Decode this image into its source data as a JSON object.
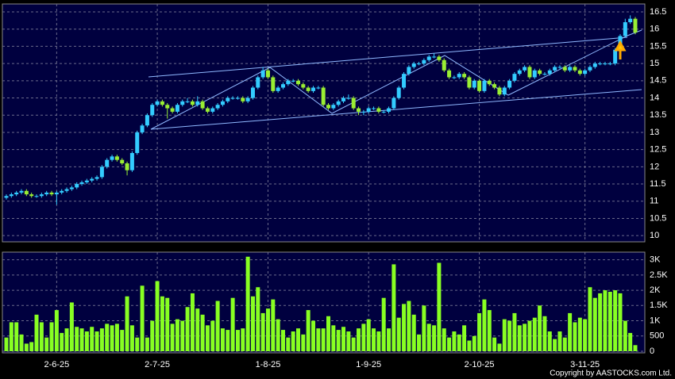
{
  "chart_data": {
    "type": "candlestick",
    "footer": "Copyright by AASTOCKS.com Ltd.",
    "categories": [
      null,
      null,
      null,
      null,
      null,
      null,
      null,
      null,
      null,
      null,
      "2-6-25",
      null,
      null,
      null,
      null,
      null,
      null,
      null,
      null,
      null,
      null,
      null,
      null,
      null,
      null,
      null,
      null,
      null,
      null,
      null,
      "2-7-25",
      null,
      null,
      null,
      null,
      null,
      null,
      null,
      null,
      null,
      null,
      null,
      null,
      null,
      null,
      null,
      null,
      null,
      null,
      null,
      null,
      null,
      "1-8-25",
      null,
      null,
      null,
      null,
      null,
      null,
      null,
      null,
      null,
      null,
      null,
      null,
      null,
      null,
      null,
      null,
      null,
      null,
      null,
      "1-9-25",
      null,
      null,
      null,
      null,
      null,
      null,
      null,
      null,
      null,
      null,
      null,
      null,
      null,
      null,
      null,
      null,
      null,
      null,
      null,
      null,
      null,
      "2-10-25",
      null,
      null,
      null,
      null,
      null,
      null,
      null,
      null,
      null,
      null,
      null,
      null,
      null,
      null,
      null,
      null,
      null,
      null,
      null,
      null,
      "3-11-25",
      null,
      null,
      null,
      null,
      null,
      null,
      null,
      null,
      null,
      null
    ],
    "open": [
      11.1,
      11.15,
      11.2,
      11.25,
      11.3,
      11.2,
      11.15,
      11.15,
      11.2,
      11.25,
      11.2,
      11.25,
      11.3,
      11.35,
      11.4,
      11.5,
      11.55,
      11.6,
      11.65,
      11.7,
      12.0,
      12.2,
      12.3,
      12.2,
      12.1,
      11.9,
      12.4,
      13.0,
      13.2,
      13.5,
      13.8,
      13.9,
      13.8,
      13.7,
      13.6,
      13.8,
      13.9,
      13.9,
      13.8,
      13.9,
      13.7,
      13.6,
      13.7,
      13.8,
      13.9,
      14.0,
      14.0,
      14.0,
      13.9,
      14.0,
      14.3,
      14.6,
      14.8,
      14.6,
      14.2,
      14.3,
      14.4,
      14.5,
      14.5,
      14.4,
      14.3,
      14.2,
      14.3,
      14.3,
      13.8,
      13.7,
      13.8,
      13.9,
      14.0,
      14.0,
      13.7,
      13.6,
      13.6,
      13.7,
      13.7,
      13.6,
      13.6,
      13.7,
      14.0,
      14.3,
      14.7,
      14.9,
      15.0,
      15.0,
      15.1,
      15.2,
      15.2,
      15.1,
      14.8,
      14.6,
      14.6,
      14.7,
      14.6,
      14.3,
      14.5,
      14.2,
      14.5,
      14.4,
      14.3,
      14.1,
      14.3,
      14.5,
      14.7,
      14.8,
      14.9,
      14.6,
      14.8,
      14.7,
      14.7,
      14.8,
      14.9,
      14.9,
      14.8,
      14.9,
      14.8,
      14.7,
      14.8,
      14.9,
      15.0,
      15.0,
      15.0,
      15.0,
      15.4,
      15.8,
      16.2,
      16.3
    ],
    "high": [
      11.2,
      11.25,
      11.3,
      11.35,
      11.35,
      11.25,
      11.2,
      11.25,
      11.3,
      11.3,
      11.3,
      11.35,
      11.4,
      11.45,
      11.55,
      11.6,
      11.65,
      11.7,
      11.75,
      12.05,
      12.25,
      12.35,
      12.35,
      12.25,
      12.15,
      12.45,
      13.05,
      13.25,
      13.55,
      13.85,
      13.95,
      13.95,
      13.85,
      13.75,
      13.85,
      13.95,
      14.0,
      13.95,
      14.05,
      13.95,
      13.75,
      13.75,
      13.85,
      13.95,
      14.05,
      14.05,
      14.05,
      14.05,
      14.05,
      14.35,
      14.65,
      14.9,
      14.85,
      14.65,
      14.35,
      14.45,
      14.55,
      14.55,
      14.55,
      14.45,
      14.35,
      14.35,
      14.35,
      14.35,
      13.85,
      13.85,
      13.95,
      14.05,
      14.1,
      14.05,
      13.75,
      13.65,
      13.75,
      13.75,
      13.75,
      13.65,
      13.75,
      14.05,
      14.35,
      14.75,
      14.95,
      15.05,
      15.05,
      15.15,
      15.25,
      15.3,
      15.25,
      15.15,
      14.85,
      14.65,
      14.75,
      14.75,
      14.65,
      14.55,
      14.55,
      14.55,
      14.55,
      14.45,
      14.35,
      14.35,
      14.55,
      14.75,
      14.85,
      14.95,
      14.95,
      14.85,
      14.85,
      14.75,
      14.85,
      14.95,
      14.95,
      14.95,
      14.95,
      14.95,
      14.85,
      14.85,
      14.95,
      15.05,
      15.05,
      15.05,
      15.05,
      15.45,
      15.85,
      16.3,
      16.4,
      16.35
    ],
    "low": [
      11.05,
      11.1,
      11.15,
      11.2,
      11.15,
      11.1,
      11.1,
      11.1,
      11.15,
      11.15,
      10.9,
      11.2,
      11.25,
      11.3,
      11.35,
      11.45,
      11.5,
      11.55,
      11.6,
      11.65,
      11.95,
      12.15,
      12.15,
      12.05,
      11.75,
      11.85,
      12.35,
      12.95,
      13.15,
      13.45,
      13.75,
      13.75,
      13.4,
      13.55,
      13.55,
      13.75,
      13.85,
      13.75,
      13.75,
      13.65,
      13.55,
      13.55,
      13.65,
      13.75,
      13.85,
      13.95,
      13.95,
      13.85,
      13.85,
      13.95,
      14.25,
      14.55,
      14.55,
      14.15,
      14.15,
      14.25,
      14.35,
      14.45,
      14.35,
      14.25,
      14.15,
      14.15,
      14.25,
      13.75,
      13.65,
      13.65,
      13.75,
      13.85,
      13.95,
      13.65,
      13.5,
      13.5,
      13.55,
      13.65,
      13.55,
      13.55,
      13.55,
      13.65,
      13.95,
      14.25,
      14.65,
      14.85,
      14.95,
      14.95,
      15.05,
      15.15,
      15.05,
      14.75,
      14.55,
      14.55,
      14.55,
      14.55,
      14.25,
      14.25,
      14.15,
      14.15,
      14.35,
      14.25,
      14.05,
      14.05,
      14.25,
      14.45,
      14.65,
      14.75,
      14.55,
      14.55,
      14.65,
      14.65,
      14.65,
      14.75,
      14.85,
      14.75,
      14.75,
      14.75,
      14.65,
      14.65,
      14.75,
      14.85,
      14.95,
      14.95,
      14.95,
      14.95,
      15.35,
      15.75,
      16.15,
      15.85
    ],
    "close": [
      11.15,
      11.2,
      11.25,
      11.3,
      11.2,
      11.15,
      11.15,
      11.2,
      11.25,
      11.2,
      11.25,
      11.3,
      11.35,
      11.4,
      11.5,
      11.55,
      11.6,
      11.65,
      11.7,
      12.0,
      12.2,
      12.3,
      12.2,
      12.1,
      11.9,
      12.4,
      13.0,
      13.2,
      13.5,
      13.8,
      13.9,
      13.8,
      13.7,
      13.6,
      13.8,
      13.9,
      13.9,
      13.8,
      13.9,
      13.7,
      13.6,
      13.7,
      13.8,
      13.9,
      14.0,
      14.0,
      14.0,
      13.9,
      14.0,
      14.3,
      14.6,
      14.8,
      14.6,
      14.2,
      14.3,
      14.4,
      14.5,
      14.5,
      14.4,
      14.3,
      14.2,
      14.3,
      14.3,
      13.8,
      13.7,
      13.8,
      13.9,
      14.0,
      14.0,
      13.7,
      13.6,
      13.6,
      13.7,
      13.7,
      13.6,
      13.6,
      13.7,
      14.0,
      14.3,
      14.7,
      14.9,
      15.0,
      15.0,
      15.1,
      15.2,
      15.2,
      15.1,
      14.8,
      14.6,
      14.6,
      14.7,
      14.6,
      14.3,
      14.5,
      14.2,
      14.5,
      14.4,
      14.3,
      14.1,
      14.3,
      14.5,
      14.7,
      14.8,
      14.9,
      14.6,
      14.8,
      14.7,
      14.7,
      14.8,
      14.9,
      14.9,
      14.8,
      14.9,
      14.8,
      14.7,
      14.8,
      14.9,
      15.0,
      15.0,
      15.0,
      15.0,
      15.4,
      15.8,
      16.2,
      16.3,
      15.9
    ],
    "volume": [
      450,
      950,
      950,
      550,
      250,
      300,
      1200,
      950,
      450,
      950,
      1350,
      600,
      750,
      1600,
      800,
      750,
      650,
      800,
      650,
      750,
      900,
      850,
      900,
      700,
      1800,
      850,
      450,
      2150,
      450,
      1000,
      2300,
      1800,
      1750,
      900,
      1050,
      1000,
      1450,
      1900,
      1400,
      1200,
      850,
      1000,
      1650,
      750,
      700,
      1750,
      700,
      750,
      3100,
      1800,
      2100,
      1250,
      1400,
      1700,
      1050,
      700,
      450,
      650,
      750,
      550,
      1350,
      1000,
      750,
      750,
      1150,
      850,
      700,
      800,
      650,
      450,
      750,
      900,
      1050,
      750,
      650,
      1750,
      750,
      2850,
      1100,
      1550,
      1650,
      1200,
      550,
      1500,
      900,
      850,
      2900,
      750,
      450,
      650,
      550,
      850,
      350,
      500,
      1250,
      1700,
      1350,
      450,
      250,
      1050,
      1000,
      1250,
      850,
      900,
      1000,
      1100,
      1500,
      1150,
      650,
      400,
      650,
      450,
      1250,
      950,
      1100,
      1050,
      2100,
      1750,
      1900,
      2000,
      1950,
      2000,
      1900,
      1000,
      600,
      200
    ],
    "up_color": "#33ccff",
    "down_color": "#99ee33",
    "volume_color": "#88ff22",
    "ylim": [
      9.82,
      16.73
    ],
    "yticks": [
      10,
      10.5,
      11,
      11.5,
      12,
      12.5,
      13,
      13.5,
      14,
      14.5,
      15,
      15.5,
      16,
      16.5
    ],
    "y2lim": [
      0,
      3250
    ],
    "y2ticks": [
      0,
      500,
      {
        "value": 1000,
        "label": "1K"
      },
      {
        "value": 1500,
        "label": "1.5K"
      },
      {
        "value": 2000,
        "label": "2K"
      },
      {
        "value": 2500,
        "label": "2.5K"
      },
      {
        "value": 3000,
        "label": "3K"
      }
    ],
    "grid": true
  }
}
